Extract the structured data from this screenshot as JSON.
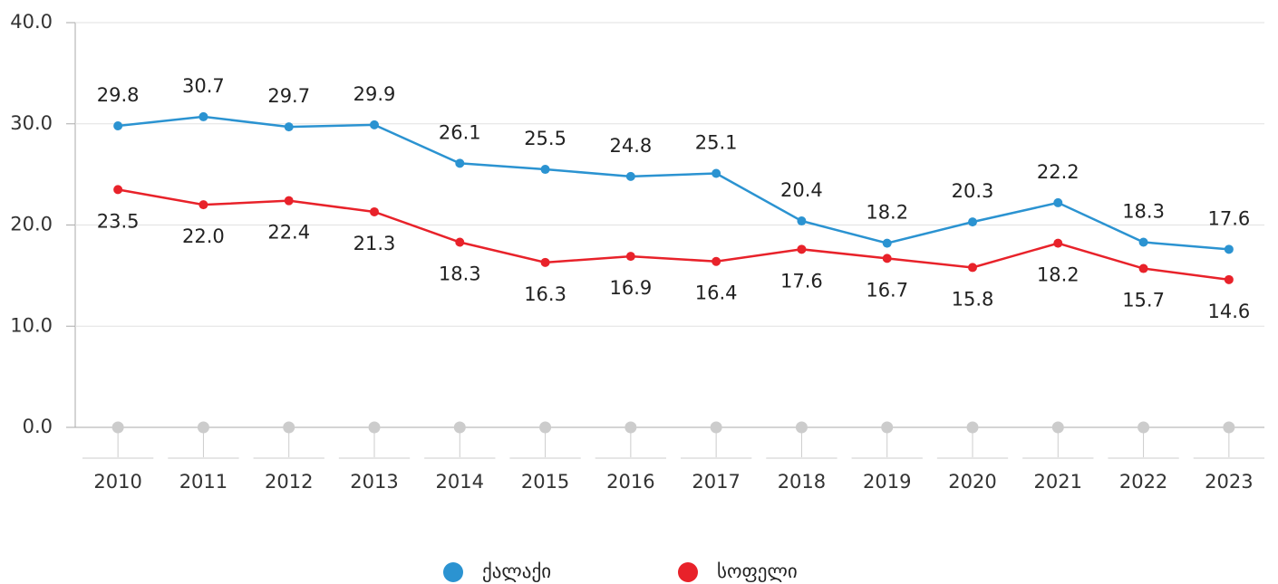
{
  "chart_data": {
    "type": "line",
    "categories": [
      "2010",
      "2011",
      "2012",
      "2013",
      "2014",
      "2015",
      "2016",
      "2017",
      "2018",
      "2019",
      "2020",
      "2021",
      "2022",
      "2023"
    ],
    "series": [
      {
        "name": "ქალაქი",
        "color": "#2b93d1",
        "values": [
          29.8,
          30.7,
          29.7,
          29.9,
          26.1,
          25.5,
          24.8,
          25.1,
          20.4,
          18.2,
          20.3,
          22.2,
          18.3,
          17.6
        ],
        "value_labels": [
          "29.8",
          "30.7",
          "29.7",
          "29.9",
          "26.1",
          "25.5",
          "24.8",
          "25.1",
          "20.4",
          "18.2",
          "20.3",
          "22.2",
          "18.3",
          "17.6"
        ]
      },
      {
        "name": "სოფელი",
        "color": "#e8222a",
        "values": [
          23.5,
          22.0,
          22.4,
          21.3,
          18.3,
          16.3,
          16.9,
          16.4,
          17.6,
          16.7,
          15.8,
          18.2,
          15.7,
          14.6
        ],
        "value_labels": [
          "23.5",
          "22.0",
          "22.4",
          "21.3",
          "18.3",
          "16.3",
          "16.9",
          "16.4",
          "17.6",
          "16.7",
          "15.8",
          "18.2",
          "15.7",
          "14.6"
        ]
      }
    ],
    "ylim": [
      0,
      40
    ],
    "yticks": [
      {
        "value": 0,
        "label": "0.0"
      },
      {
        "value": 10,
        "label": "10.0"
      },
      {
        "value": 20,
        "label": "20.0"
      },
      {
        "value": 30,
        "label": "30.0"
      },
      {
        "value": 40,
        "label": "40.0"
      }
    ],
    "grid": true
  }
}
